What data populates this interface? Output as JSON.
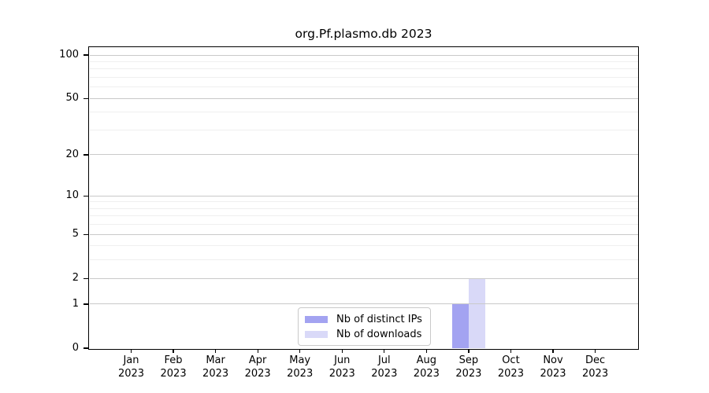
{
  "chart_data": {
    "type": "bar",
    "title": "org.Pf.plasmo.db 2023",
    "categories": [
      "Jan",
      "Feb",
      "Mar",
      "Apr",
      "May",
      "Jun",
      "Jul",
      "Aug",
      "Sep",
      "Oct",
      "Nov",
      "Dec"
    ],
    "category_year": "2023",
    "series": [
      {
        "name": "Nb of distinct IPs",
        "color": "#a3a3f1",
        "values": [
          0,
          0,
          0,
          0,
          0,
          0,
          0,
          0,
          1,
          0,
          0,
          0
        ]
      },
      {
        "name": "Nb of downloads",
        "color": "#d9d9f8",
        "values": [
          0,
          0,
          0,
          0,
          0,
          0,
          0,
          0,
          2,
          0,
          0,
          0
        ]
      }
    ],
    "y_axis": {
      "scale": "log10(1+y)",
      "ticks": [
        0,
        1,
        2,
        5,
        10,
        20,
        50,
        100
      ],
      "minor_gridlines": [
        3,
        4,
        6,
        7,
        8,
        9,
        30,
        40,
        60,
        70,
        80,
        90
      ],
      "ylim": [
        0,
        113
      ]
    },
    "legend": {
      "position": "inside-bottom-center"
    },
    "grid": true,
    "colors": {
      "bar_distinct_ips": "#a3a3f1",
      "bar_downloads": "#d9d9f8",
      "major_grid": "#c9c9c9",
      "minor_grid": "#efefef",
      "axis": "#000000",
      "background": "#ffffff",
      "text": "#000000"
    }
  }
}
